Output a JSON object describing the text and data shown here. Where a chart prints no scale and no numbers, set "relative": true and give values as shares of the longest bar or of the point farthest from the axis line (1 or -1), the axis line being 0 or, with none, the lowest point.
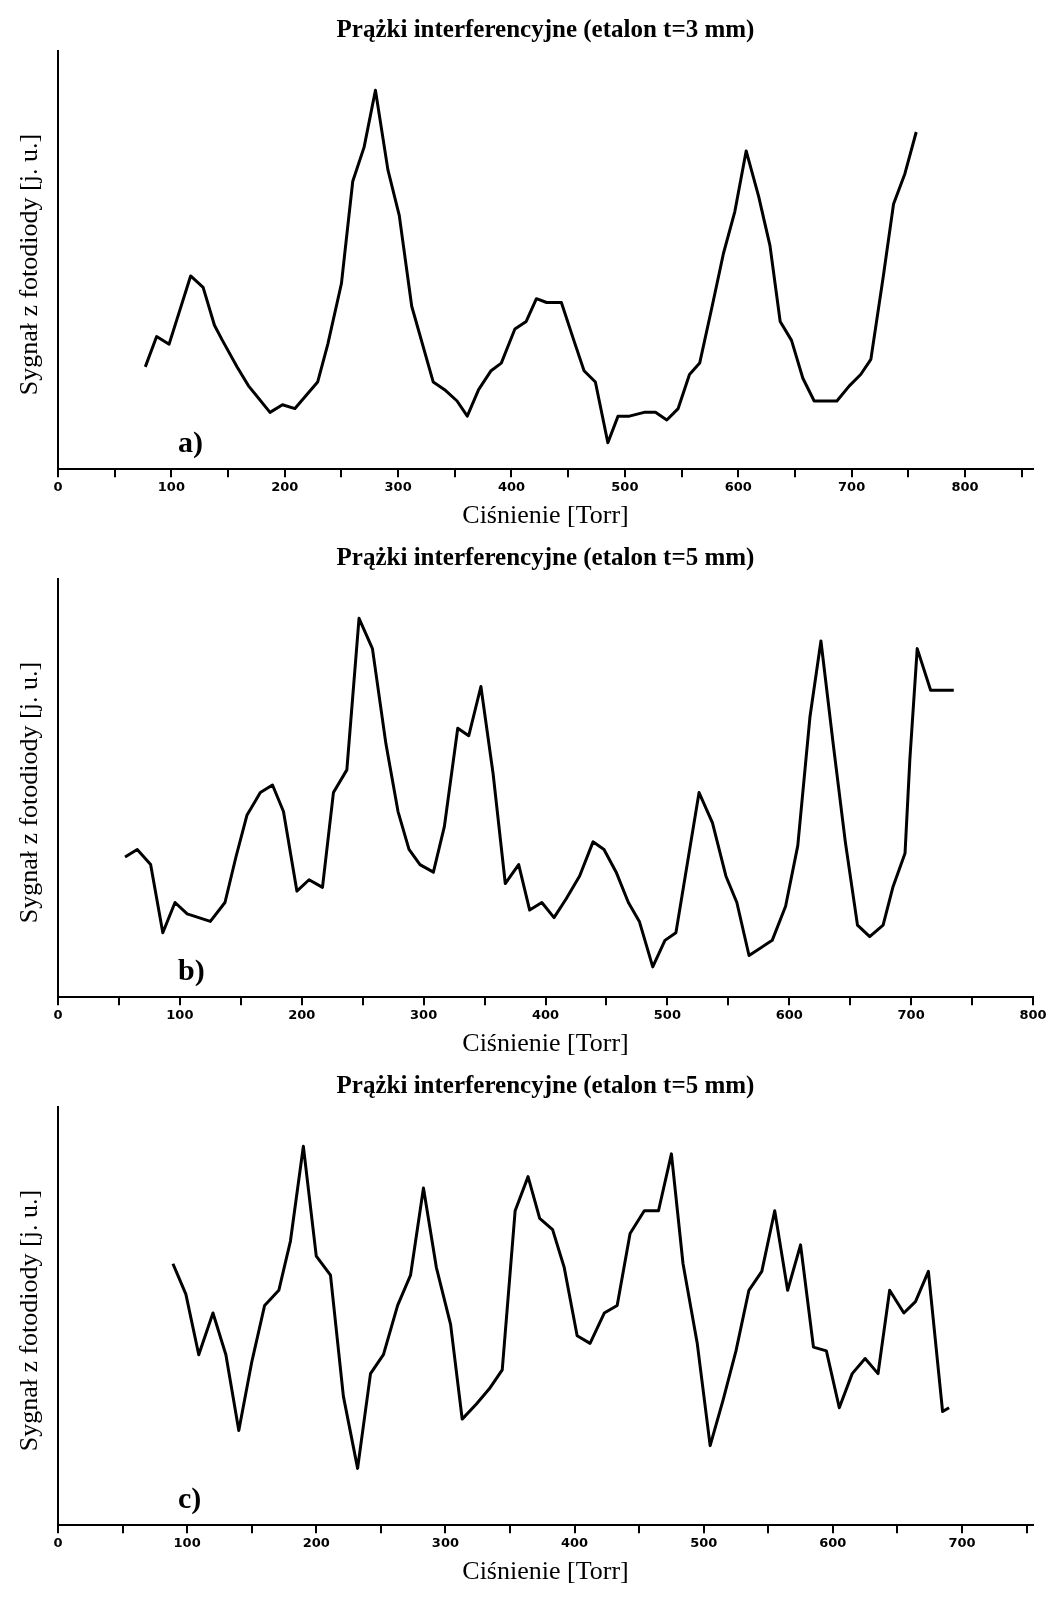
{
  "chart_data": [
    {
      "type": "line",
      "title": "Prążki interferencyjne (etalon t=3 mm)",
      "xlabel": "Ciśnienie [Torr]",
      "ylabel": "Sygnał z fotodiody [j. u.]",
      "relative": true,
      "annotations": [
        "a)"
      ],
      "xlim": [
        0,
        860
      ],
      "xticks": [
        0,
        {
          "value": 50,
          "label": null
        },
        100,
        {
          "value": 150,
          "label": null
        },
        200,
        {
          "value": 250,
          "label": null
        },
        300,
        {
          "value": 350,
          "label": null
        },
        400,
        {
          "value": 450,
          "label": null
        },
        500,
        {
          "value": 550,
          "label": null
        },
        600,
        {
          "value": 650,
          "label": null
        },
        700,
        {
          "value": 750,
          "label": null
        },
        800,
        {
          "value": 850,
          "label": null
        }
      ],
      "grid": false,
      "marker": "none",
      "line_style": "solid",
      "series": [
        {
          "color": "#000000",
          "x": [
            77,
            87,
            98,
            117,
            128,
            138,
            145,
            158,
            168,
            187,
            198,
            209,
            229,
            238,
            250,
            260,
            270,
            280,
            291,
            301,
            312,
            331,
            341,
            352,
            361,
            371,
            382,
            391,
            403,
            413,
            422,
            431,
            444,
            455,
            464,
            474,
            485,
            494,
            504,
            517,
            527,
            537,
            547,
            557,
            566,
            577,
            587,
            597,
            607,
            618,
            628,
            637,
            647,
            657,
            667,
            677,
            687,
            698,
            708,
            717,
            728,
            737,
            747,
            757
          ],
          "values": [
            0.27,
            0.35,
            0.33,
            0.51,
            0.48,
            0.38,
            0.34,
            0.27,
            0.22,
            0.15,
            0.17,
            0.16,
            0.23,
            0.33,
            0.49,
            0.76,
            0.85,
            1.0,
            0.79,
            0.67,
            0.43,
            0.23,
            0.21,
            0.18,
            0.14,
            0.21,
            0.26,
            0.28,
            0.37,
            0.39,
            0.45,
            0.44,
            0.44,
            0.34,
            0.26,
            0.23,
            0.07,
            0.14,
            0.14,
            0.15,
            0.15,
            0.13,
            0.16,
            0.25,
            0.28,
            0.43,
            0.57,
            0.68,
            0.84,
            0.72,
            0.59,
            0.39,
            0.34,
            0.24,
            0.18,
            0.18,
            0.18,
            0.22,
            0.25,
            0.29,
            0.51,
            0.7,
            0.78,
            0.89
          ]
        }
      ]
    },
    {
      "type": "line",
      "title": "Prążki interferencyjne (etalon t=5 mm)",
      "xlabel": "Ciśnienie [Torr]",
      "ylabel": "Sygnał z fotodiody [j. u.]",
      "relative": true,
      "annotations": [
        "b)"
      ],
      "xlim": [
        0,
        800
      ],
      "xticks": [
        0,
        {
          "value": 50,
          "label": null
        },
        100,
        {
          "value": 150,
          "label": null
        },
        200,
        {
          "value": 250,
          "label": null
        },
        300,
        {
          "value": 350,
          "label": null
        },
        400,
        {
          "value": 450,
          "label": null
        },
        500,
        {
          "value": 550,
          "label": null
        },
        600,
        {
          "value": 650,
          "label": null
        },
        700,
        {
          "value": 750,
          "label": null
        },
        800
      ],
      "grid": false,
      "marker": "none",
      "line_style": "solid",
      "series": [
        {
          "color": "#000000",
          "x": [
            55,
            65,
            76,
            86,
            96,
            106,
            125,
            137,
            146,
            155,
            166,
            176,
            185,
            196,
            206,
            217,
            226,
            237,
            247,
            258,
            269,
            279,
            288,
            297,
            308,
            317,
            328,
            337,
            347,
            357,
            367,
            378,
            387,
            397,
            407,
            417,
            428,
            439,
            448,
            458,
            468,
            477,
            488,
            498,
            507,
            526,
            537,
            548,
            557,
            567,
            586,
            597,
            607,
            617,
            626,
            636,
            646,
            656,
            666,
            677,
            685,
            695,
            699,
            705,
            716,
            726,
            735
          ],
          "values": [
            0.37,
            0.39,
            0.35,
            0.17,
            0.25,
            0.22,
            0.2,
            0.25,
            0.37,
            0.48,
            0.54,
            0.56,
            0.49,
            0.28,
            0.31,
            0.29,
            0.54,
            0.6,
            1.0,
            0.92,
            0.67,
            0.49,
            0.39,
            0.35,
            0.33,
            0.45,
            0.71,
            0.69,
            0.82,
            0.59,
            0.3,
            0.35,
            0.23,
            0.25,
            0.21,
            0.26,
            0.32,
            0.41,
            0.39,
            0.33,
            0.25,
            0.2,
            0.08,
            0.15,
            0.17,
            0.54,
            0.46,
            0.32,
            0.25,
            0.11,
            0.15,
            0.24,
            0.4,
            0.74,
            0.94,
            0.67,
            0.41,
            0.19,
            0.16,
            0.19,
            0.29,
            0.38,
            0.63,
            0.92,
            0.81,
            0.81,
            0.81
          ]
        }
      ]
    },
    {
      "type": "line",
      "title": "Prążki interferencyjne (etalon t=5 mm)",
      "xlabel": "Ciśnienie [Torr]",
      "ylabel": "Sygnał z fotodiody [j. u.]",
      "relative": true,
      "annotations": [
        "c)"
      ],
      "xlim": [
        0,
        755
      ],
      "xticks": [
        0,
        {
          "value": 50,
          "label": null
        },
        100,
        {
          "value": 150,
          "label": null
        },
        200,
        {
          "value": 250,
          "label": null
        },
        300,
        {
          "value": 350,
          "label": null
        },
        400,
        {
          "value": 450,
          "label": null
        },
        500,
        {
          "value": 550,
          "label": null
        },
        600,
        {
          "value": 650,
          "label": null
        },
        700,
        {
          "value": 750,
          "label": null
        }
      ],
      "grid": false,
      "marker": "none",
      "line_style": "solid",
      "series": [
        {
          "color": "#000000",
          "x": [
            89,
            99,
            109,
            120,
            130,
            140,
            150,
            160,
            171,
            180,
            190,
            200,
            211,
            221,
            232,
            242,
            252,
            263,
            273,
            283,
            293,
            304,
            313,
            324,
            334,
            344,
            354,
            364,
            373,
            383,
            392,
            402,
            412,
            423,
            433,
            443,
            454,
            465,
            475,
            484,
            495,
            505,
            515,
            525,
            535,
            545,
            555,
            565,
            575,
            585,
            595,
            605,
            615,
            625,
            635,
            644,
            655,
            664,
            674,
            685,
            690
          ],
          "values": [
            0.69,
            0.61,
            0.45,
            0.56,
            0.45,
            0.25,
            0.43,
            0.58,
            0.62,
            0.75,
            1.0,
            0.71,
            0.66,
            0.34,
            0.15,
            0.4,
            0.45,
            0.58,
            0.66,
            0.89,
            0.68,
            0.53,
            0.28,
            0.32,
            0.36,
            0.41,
            0.83,
            0.92,
            0.81,
            0.78,
            0.68,
            0.5,
            0.48,
            0.56,
            0.58,
            0.77,
            0.83,
            0.83,
            0.98,
            0.69,
            0.48,
            0.21,
            0.33,
            0.46,
            0.62,
            0.67,
            0.83,
            0.62,
            0.74,
            0.47,
            0.46,
            0.31,
            0.4,
            0.44,
            0.4,
            0.62,
            0.56,
            0.59,
            0.67,
            0.3,
            0.31
          ]
        }
      ]
    }
  ]
}
